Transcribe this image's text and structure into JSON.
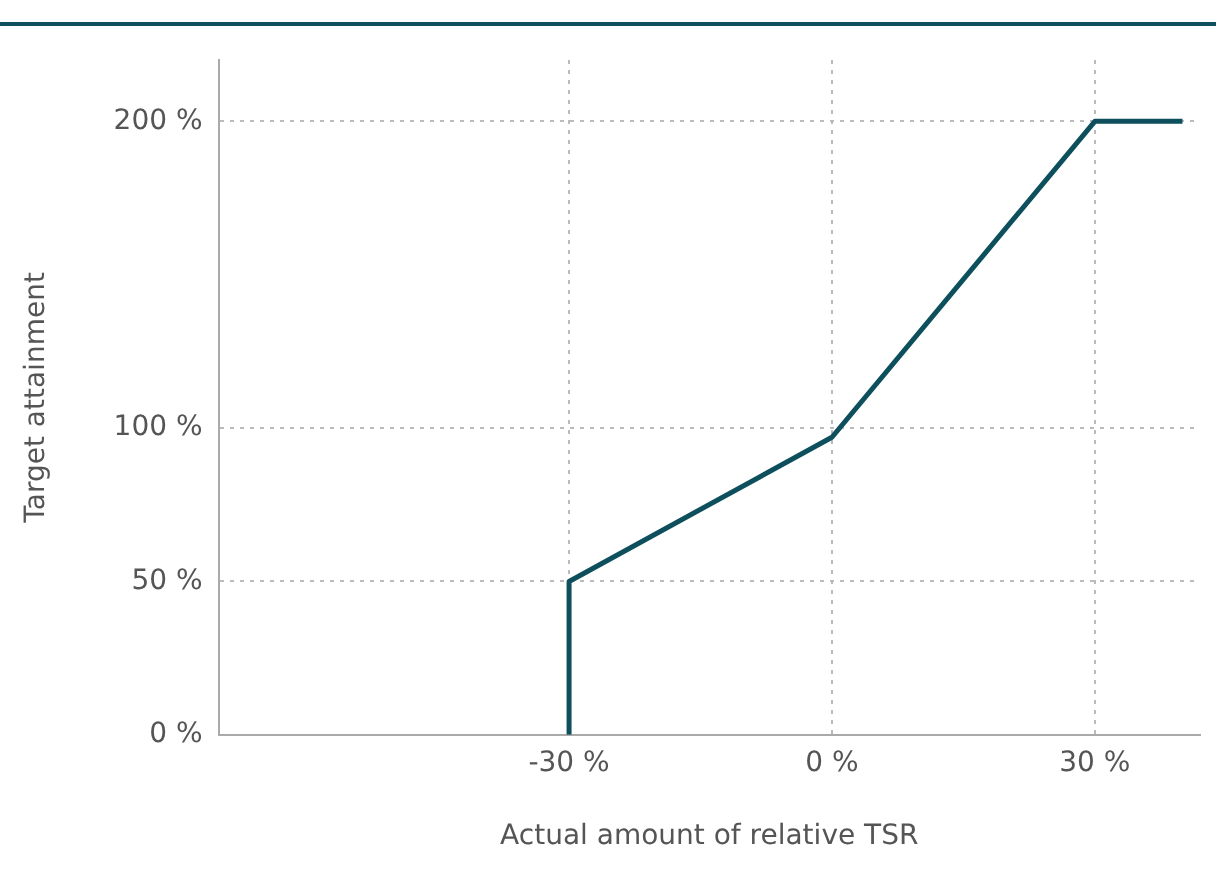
{
  "chart_data": {
    "type": "line",
    "xlabel": "Actual amount of relative TSR",
    "ylabel": "Target attainment",
    "x": [
      -30,
      -30,
      0,
      30,
      40
    ],
    "series": [
      {
        "color": "#0d4f5c",
        "values": [
          0,
          50,
          97,
          200,
          200
        ]
      }
    ],
    "xlim": [
      -70,
      42
    ],
    "xticks": [
      {
        "value": -30,
        "label": "-30 %"
      },
      {
        "value": 0,
        "label": "0 %"
      },
      {
        "value": 30,
        "label": "30 %"
      }
    ],
    "ylim": [
      0,
      220
    ],
    "yticks": [
      {
        "value": 0,
        "label": "0 %"
      },
      {
        "value": 50,
        "label": "50 %"
      },
      {
        "value": 100,
        "label": "100 %"
      },
      {
        "value": 200,
        "label": "200 %"
      }
    ],
    "grid": true,
    "legend": false,
    "marker": "none",
    "line_style": "solid"
  }
}
